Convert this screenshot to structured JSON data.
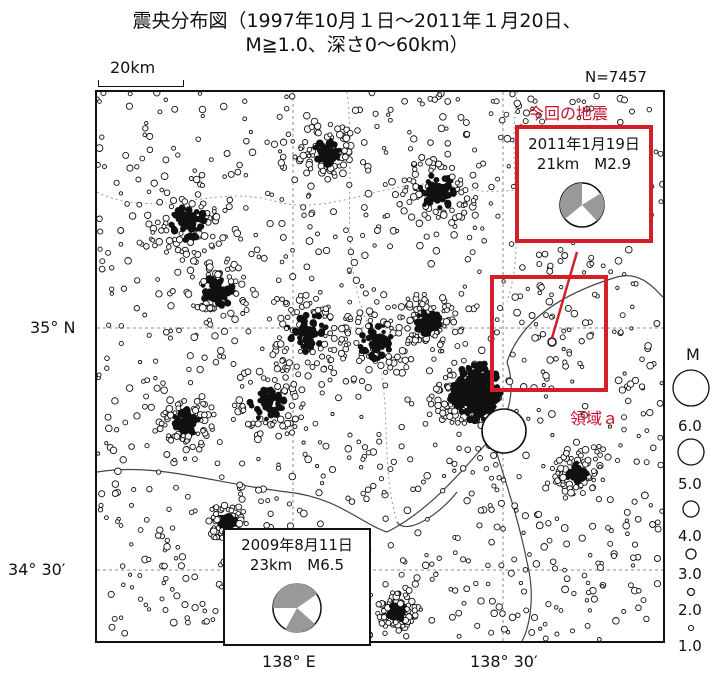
{
  "title": {
    "line1": "震央分布図（1997年10月１日～2011年１月20日、",
    "line2": "M≧1.0、深さ0～60km）"
  },
  "scale_label": "20km",
  "event_count": "N=7457",
  "axes": {
    "lat_35": "35° N",
    "lat_3430": "34° 30′",
    "lon_138": "138° E",
    "lon_13830": "138° 30′"
  },
  "current_event": {
    "label": "今回の地震",
    "date": "2011年1月19日",
    "depth_mag": "21km　M2.9"
  },
  "past_event": {
    "date": "2009年8月11日",
    "depth_mag": "23km　M6.5"
  },
  "region_label": "領域ａ",
  "legend": {
    "title": "M",
    "values": [
      "6.0",
      "5.0",
      "4.0",
      "3.0",
      "2.0",
      "1.0"
    ]
  },
  "colors": {
    "highlight_red": "#d41f2a",
    "label_red": "#c8102e"
  }
}
